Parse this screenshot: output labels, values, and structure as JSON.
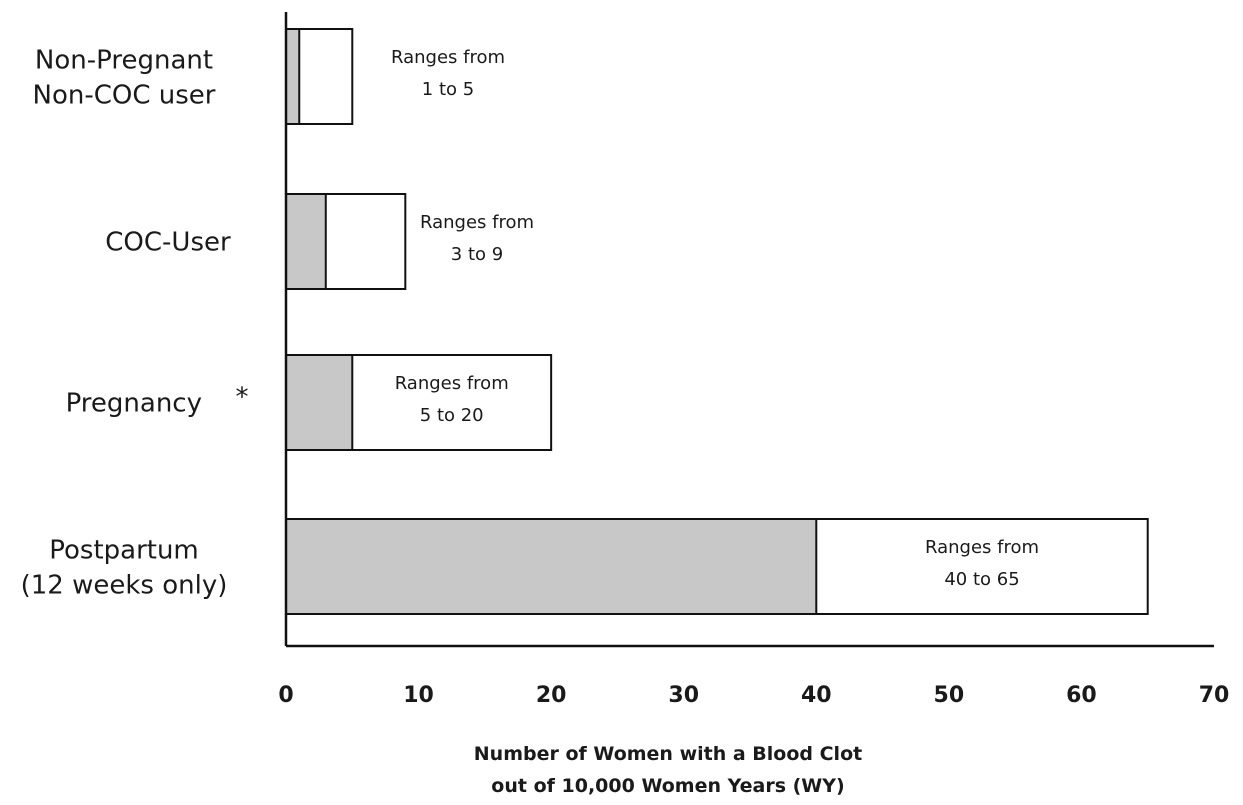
{
  "chart_data": {
    "type": "bar",
    "orientation": "horizontal",
    "categories": [
      [
        "Non-Pregnant",
        "Non-COC user"
      ],
      [
        "COC-User"
      ],
      [
        "Pregnancy",
        "*"
      ],
      [
        "Postpartum",
        "(12 weeks only)"
      ]
    ],
    "series": [
      {
        "values": [
          1,
          3,
          5,
          40
        ]
      },
      {
        "values": [
          5,
          9,
          20,
          65
        ]
      }
    ],
    "range_labels": [
      [
        "Ranges from",
        "1 to 5"
      ],
      [
        "Ranges from",
        "3 to 9"
      ],
      [
        "Ranges from",
        "5  to  20"
      ],
      [
        "Ranges from",
        "40  to  65"
      ]
    ],
    "xlim": [
      0,
      70
    ],
    "xticks": [
      0,
      10,
      20,
      30,
      40,
      50,
      60,
      70
    ],
    "xlabel": [
      "Number of Women with a Blood Clot",
      "out of 10,000 Women Years (WY)"
    ],
    "colors": {
      "low_fill": "#c8c8c8",
      "range_fill": "#ffffff",
      "stroke": "#111111"
    }
  }
}
